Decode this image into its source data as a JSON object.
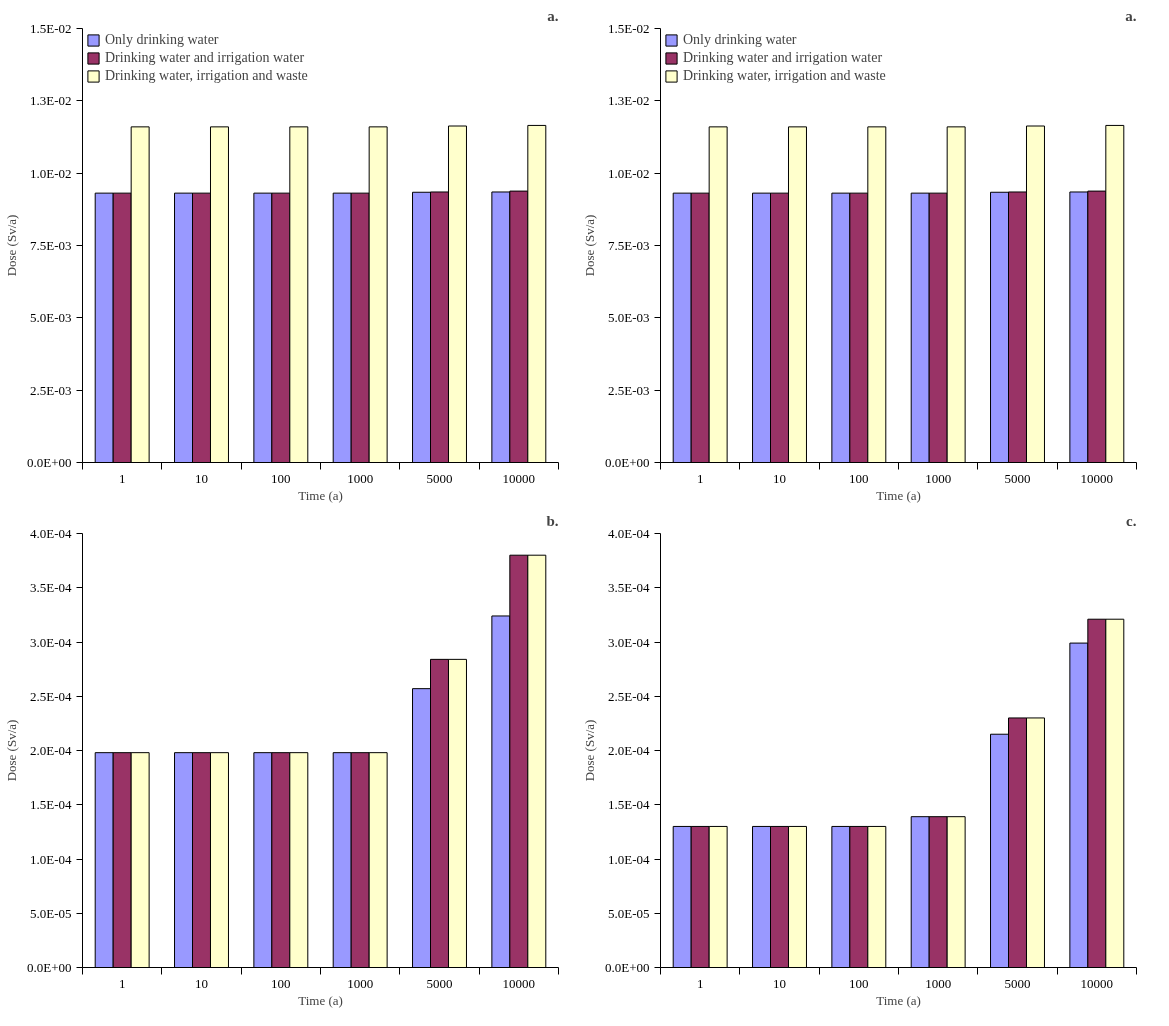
{
  "chart_data": [
    {
      "type": "bar",
      "title": "a.",
      "xlabel": "Time (a)",
      "ylabel": "Dose (Sv/a)",
      "categories": [
        "1",
        "10",
        "100",
        "1000",
        "5000",
        "10000"
      ],
      "series": [
        {
          "name": "Only drinking water",
          "color": "#9999ff",
          "values": [
            0.00931,
            0.00931,
            0.00931,
            0.00931,
            0.00934,
            0.00935
          ]
        },
        {
          "name": "Drinking water and irrigation water",
          "color": "#993366",
          "values": [
            0.00931,
            0.00931,
            0.00931,
            0.00931,
            0.00935,
            0.00938
          ]
        },
        {
          "name": "Drinking water, irrigation and waste",
          "color": "#ffffcc",
          "values": [
            0.0116,
            0.0116,
            0.0116,
            0.0116,
            0.01163,
            0.01165
          ]
        }
      ],
      "ylim": [
        0,
        0.015
      ],
      "yticks": [
        {
          "value": 0,
          "label": "0.0E+00"
        },
        {
          "value": 0.0025,
          "label": "2.5E-03"
        },
        {
          "value": 0.005,
          "label": "5.0E-03"
        },
        {
          "value": 0.0075,
          "label": "7.5E-03"
        },
        {
          "value": 0.01,
          "label": "1.0E-02"
        },
        {
          "value": 0.0125,
          "label": "1.3E-02"
        },
        {
          "value": 0.015,
          "label": "1.5E-02"
        }
      ],
      "grid": false,
      "legend": "top left"
    },
    {
      "type": "bar",
      "title": "a.",
      "xlabel": "Time (a)",
      "ylabel": "Dose (Sv/a)",
      "categories": [
        "1",
        "10",
        "100",
        "1000",
        "5000",
        "10000"
      ],
      "series": [
        {
          "name": "Only drinking water",
          "color": "#9999ff",
          "values": [
            0.00931,
            0.00931,
            0.00931,
            0.00931,
            0.00934,
            0.00935
          ]
        },
        {
          "name": "Drinking water and irrigation water",
          "color": "#993366",
          "values": [
            0.00931,
            0.00931,
            0.00931,
            0.00931,
            0.00935,
            0.00938
          ]
        },
        {
          "name": "Drinking water, irrigation and waste",
          "color": "#ffffcc",
          "values": [
            0.0116,
            0.0116,
            0.0116,
            0.0116,
            0.01163,
            0.01165
          ]
        }
      ],
      "ylim": [
        0,
        0.015
      ],
      "yticks": [
        {
          "value": 0,
          "label": "0.0E+00"
        },
        {
          "value": 0.0025,
          "label": "2.5E-03"
        },
        {
          "value": 0.005,
          "label": "5.0E-03"
        },
        {
          "value": 0.0075,
          "label": "7.5E-03"
        },
        {
          "value": 0.01,
          "label": "1.0E-02"
        },
        {
          "value": 0.0125,
          "label": "1.3E-02"
        },
        {
          "value": 0.015,
          "label": "1.5E-02"
        }
      ],
      "grid": false,
      "legend": "top left"
    },
    {
      "type": "bar",
      "title": "b.",
      "xlabel": "Time (a)",
      "ylabel": "Dose (Sv/a)",
      "categories": [
        "1",
        "10",
        "100",
        "1000",
        "5000",
        "10000"
      ],
      "series": [
        {
          "color": "#9999ff",
          "values": [
            0.000198,
            0.000198,
            0.000198,
            0.000198,
            0.000257,
            0.000324
          ]
        },
        {
          "color": "#993366",
          "values": [
            0.000198,
            0.000198,
            0.000198,
            0.000198,
            0.000284,
            0.00038
          ]
        },
        {
          "color": "#ffffcc",
          "values": [
            0.000198,
            0.000198,
            0.000198,
            0.000198,
            0.000284,
            0.00038
          ]
        }
      ],
      "ylim": [
        0,
        0.0004
      ],
      "yticks": [
        {
          "value": 0,
          "label": "0.0E+00"
        },
        {
          "value": 5e-05,
          "label": "5.0E-05"
        },
        {
          "value": 0.0001,
          "label": "1.0E-04"
        },
        {
          "value": 0.00015,
          "label": "1.5E-04"
        },
        {
          "value": 0.0002,
          "label": "2.0E-04"
        },
        {
          "value": 0.00025,
          "label": "2.5E-04"
        },
        {
          "value": 0.0003,
          "label": "3.0E-04"
        },
        {
          "value": 0.00035,
          "label": "3.5E-04"
        },
        {
          "value": 0.0004,
          "label": "4.0E-04"
        }
      ],
      "grid": false
    },
    {
      "type": "bar",
      "title": "c.",
      "xlabel": "Time (a)",
      "ylabel": "Dose (Sv/a)",
      "categories": [
        "1",
        "10",
        "100",
        "1000",
        "5000",
        "10000"
      ],
      "series": [
        {
          "color": "#9999ff",
          "values": [
            0.00013,
            0.00013,
            0.00013,
            0.000139,
            0.000215,
            0.000299
          ]
        },
        {
          "color": "#993366",
          "values": [
            0.00013,
            0.00013,
            0.00013,
            0.000139,
            0.00023,
            0.000321
          ]
        },
        {
          "color": "#ffffcc",
          "values": [
            0.00013,
            0.00013,
            0.00013,
            0.000139,
            0.00023,
            0.000321
          ]
        }
      ],
      "ylim": [
        0,
        0.0004
      ],
      "yticks": [
        {
          "value": 0,
          "label": "0.0E+00"
        },
        {
          "value": 5e-05,
          "label": "5.0E-05"
        },
        {
          "value": 0.0001,
          "label": "1.0E-04"
        },
        {
          "value": 0.00015,
          "label": "1.5E-04"
        },
        {
          "value": 0.0002,
          "label": "2.0E-04"
        },
        {
          "value": 0.00025,
          "label": "2.5E-04"
        },
        {
          "value": 0.0003,
          "label": "3.0E-04"
        },
        {
          "value": 0.00035,
          "label": "3.5E-04"
        },
        {
          "value": 0.0004,
          "label": "4.0E-04"
        }
      ],
      "grid": false
    }
  ]
}
